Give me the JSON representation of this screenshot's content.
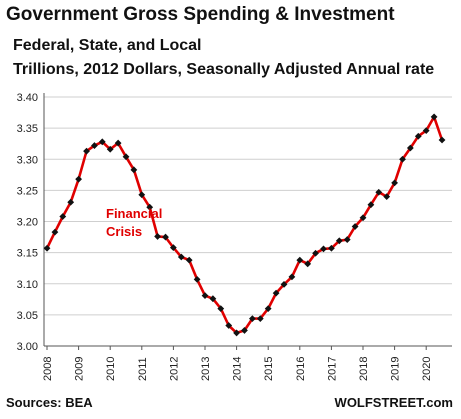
{
  "chart_data": {
    "type": "line",
    "title": "Government Gross Spending & Investment",
    "subtitles": [
      "Federal, State, and Local",
      "Trillions, 2012 Dollars, Seasonally Adjusted Annual rate"
    ],
    "xlabel": "",
    "ylabel": "",
    "ylim": [
      3.0,
      3.4
    ],
    "yticks": [
      "3.00",
      "3.05",
      "3.10",
      "3.15",
      "3.20",
      "3.25",
      "3.30",
      "3.35",
      "3.40"
    ],
    "xticks": [
      "2008",
      "2009",
      "2010",
      "2011",
      "2012",
      "2013",
      "2014",
      "2015",
      "2016",
      "2017",
      "2018",
      "2019",
      "2020"
    ],
    "x_start_year": 2008,
    "series": [
      {
        "color": "#e00000",
        "marker_color": "#111111",
        "values": [
          3.157,
          3.183,
          3.208,
          3.231,
          3.268,
          3.313,
          3.322,
          3.328,
          3.316,
          3.326,
          3.304,
          3.283,
          3.243,
          3.223,
          3.176,
          3.175,
          3.158,
          3.143,
          3.138,
          3.107,
          3.081,
          3.076,
          3.06,
          3.033,
          3.021,
          3.025,
          3.044,
          3.044,
          3.06,
          3.085,
          3.099,
          3.111,
          3.138,
          3.132,
          3.149,
          3.156,
          3.157,
          3.169,
          3.171,
          3.192,
          3.206,
          3.227,
          3.247,
          3.24,
          3.262,
          3.3,
          3.318,
          3.337,
          3.346,
          3.368,
          3.331
        ]
      }
    ],
    "annotation": [
      "Financial",
      "Crisis"
    ],
    "grid": "horizontal"
  },
  "footer": {
    "source": "Sources: BEA",
    "brand": "WOLFSTREET.com"
  }
}
